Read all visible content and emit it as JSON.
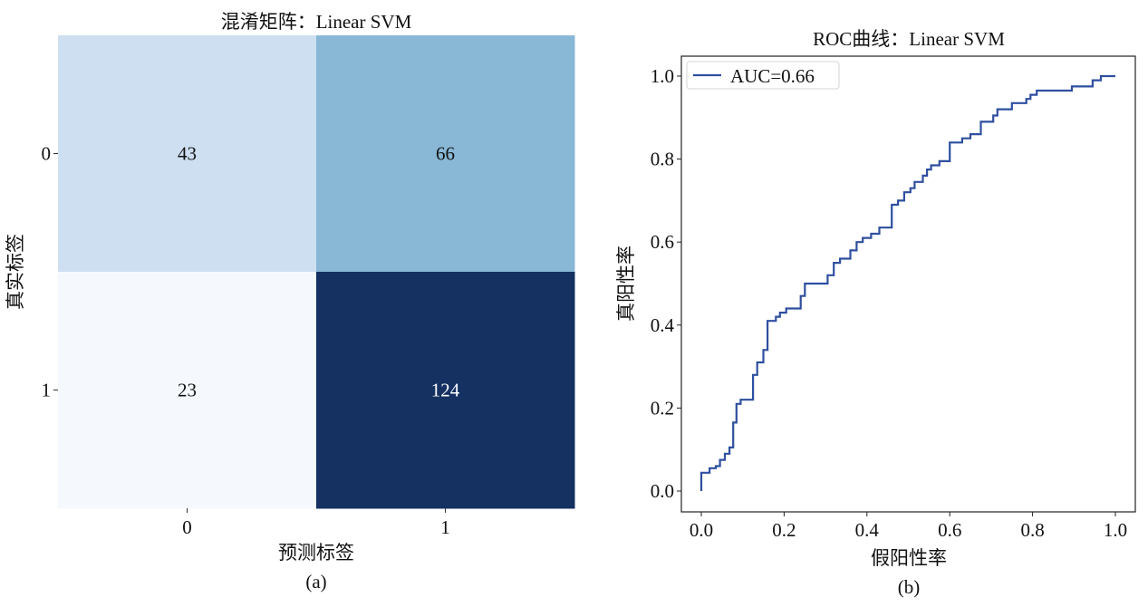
{
  "chart_data": [
    {
      "type": "heatmap",
      "title": "混淆矩阵：Linear SVM",
      "xlabel": "预测标签",
      "ylabel": "真实标签",
      "caption": "(a)",
      "x_tick_labels": [
        "0",
        "1"
      ],
      "y_tick_labels": [
        "0",
        "1"
      ],
      "matrix": [
        [
          43,
          66
        ],
        [
          23,
          124
        ]
      ],
      "colormap": "Blues",
      "cell_colors": [
        [
          "#cddff0",
          "#89b8d6"
        ],
        [
          "#f5f9fe",
          "#143162"
        ]
      ],
      "text_colors": [
        [
          "#111111",
          "#111111"
        ],
        [
          "#111111",
          "#ffffff"
        ]
      ]
    },
    {
      "type": "line",
      "title": "ROC曲线：Linear SVM",
      "xlabel": "假阳性率",
      "ylabel": "真阳性率",
      "caption": "(b)",
      "xlim": [
        -0.05,
        1.05
      ],
      "ylim": [
        -0.05,
        1.05
      ],
      "x_ticks": [
        0.0,
        0.2,
        0.4,
        0.6,
        0.8,
        1.0
      ],
      "x_tick_labels": [
        "0.0",
        "0.2",
        "0.4",
        "0.6",
        "0.8",
        "1.0"
      ],
      "y_ticks": [
        0.0,
        0.2,
        0.4,
        0.6,
        0.8,
        1.0
      ],
      "y_tick_labels": [
        "0.0",
        "0.2",
        "0.4",
        "0.6",
        "0.8",
        "1.0"
      ],
      "legend": {
        "position": "top-left",
        "entries": [
          "AUC=0.66"
        ]
      },
      "grid": false,
      "series": [
        {
          "name": "AUC=0.66",
          "color": "#2f4f9f",
          "step": true,
          "points": [
            [
              0.0,
              0.0
            ],
            [
              0.0,
              0.044
            ],
            [
              0.02,
              0.044
            ],
            [
              0.02,
              0.055
            ],
            [
              0.035,
              0.055
            ],
            [
              0.035,
              0.06
            ],
            [
              0.045,
              0.06
            ],
            [
              0.045,
              0.075
            ],
            [
              0.057,
              0.075
            ],
            [
              0.057,
              0.09
            ],
            [
              0.068,
              0.09
            ],
            [
              0.068,
              0.105
            ],
            [
              0.077,
              0.105
            ],
            [
              0.077,
              0.165
            ],
            [
              0.085,
              0.165
            ],
            [
              0.085,
              0.21
            ],
            [
              0.095,
              0.21
            ],
            [
              0.095,
              0.22
            ],
            [
              0.125,
              0.22
            ],
            [
              0.125,
              0.28
            ],
            [
              0.135,
              0.28
            ],
            [
              0.135,
              0.31
            ],
            [
              0.15,
              0.31
            ],
            [
              0.15,
              0.34
            ],
            [
              0.16,
              0.34
            ],
            [
              0.16,
              0.41
            ],
            [
              0.18,
              0.41
            ],
            [
              0.18,
              0.42
            ],
            [
              0.19,
              0.42
            ],
            [
              0.19,
              0.43
            ],
            [
              0.205,
              0.43
            ],
            [
              0.205,
              0.44
            ],
            [
              0.24,
              0.44
            ],
            [
              0.24,
              0.47
            ],
            [
              0.25,
              0.47
            ],
            [
              0.25,
              0.5
            ],
            [
              0.305,
              0.5
            ],
            [
              0.305,
              0.52
            ],
            [
              0.32,
              0.52
            ],
            [
              0.32,
              0.55
            ],
            [
              0.335,
              0.55
            ],
            [
              0.335,
              0.56
            ],
            [
              0.36,
              0.56
            ],
            [
              0.36,
              0.58
            ],
            [
              0.375,
              0.58
            ],
            [
              0.375,
              0.6
            ],
            [
              0.39,
              0.6
            ],
            [
              0.39,
              0.61
            ],
            [
              0.41,
              0.61
            ],
            [
              0.41,
              0.62
            ],
            [
              0.43,
              0.62
            ],
            [
              0.43,
              0.635
            ],
            [
              0.46,
              0.635
            ],
            [
              0.46,
              0.69
            ],
            [
              0.475,
              0.69
            ],
            [
              0.475,
              0.7
            ],
            [
              0.49,
              0.7
            ],
            [
              0.49,
              0.72
            ],
            [
              0.505,
              0.72
            ],
            [
              0.505,
              0.73
            ],
            [
              0.515,
              0.73
            ],
            [
              0.515,
              0.745
            ],
            [
              0.535,
              0.745
            ],
            [
              0.535,
              0.76
            ],
            [
              0.545,
              0.76
            ],
            [
              0.545,
              0.775
            ],
            [
              0.555,
              0.775
            ],
            [
              0.555,
              0.785
            ],
            [
              0.575,
              0.785
            ],
            [
              0.575,
              0.795
            ],
            [
              0.6,
              0.795
            ],
            [
              0.6,
              0.84
            ],
            [
              0.63,
              0.84
            ],
            [
              0.63,
              0.85
            ],
            [
              0.65,
              0.85
            ],
            [
              0.65,
              0.86
            ],
            [
              0.675,
              0.86
            ],
            [
              0.675,
              0.89
            ],
            [
              0.705,
              0.89
            ],
            [
              0.705,
              0.905
            ],
            [
              0.715,
              0.905
            ],
            [
              0.715,
              0.92
            ],
            [
              0.75,
              0.92
            ],
            [
              0.75,
              0.935
            ],
            [
              0.785,
              0.935
            ],
            [
              0.785,
              0.945
            ],
            [
              0.795,
              0.945
            ],
            [
              0.795,
              0.955
            ],
            [
              0.81,
              0.955
            ],
            [
              0.81,
              0.965
            ],
            [
              0.895,
              0.965
            ],
            [
              0.895,
              0.975
            ],
            [
              0.945,
              0.975
            ],
            [
              0.945,
              0.99
            ],
            [
              0.965,
              0.99
            ],
            [
              0.965,
              1.0
            ],
            [
              1.0,
              1.0
            ]
          ]
        }
      ]
    }
  ]
}
